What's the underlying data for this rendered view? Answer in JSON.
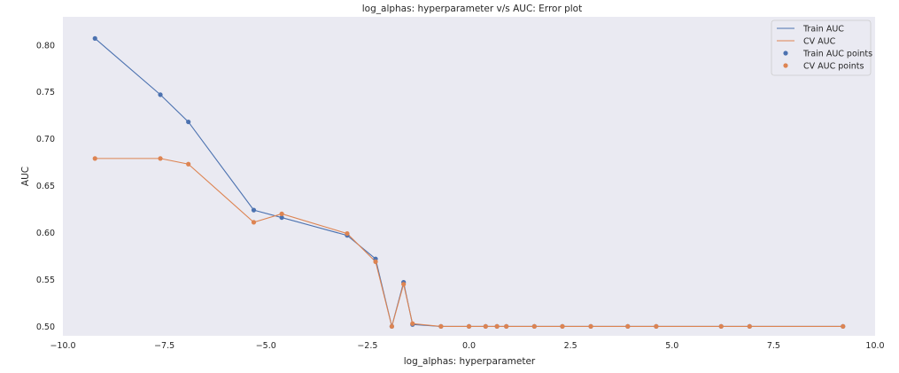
{
  "chart_data": {
    "type": "line",
    "title": "log_alphas: hyperparameter v/s AUC: Error plot",
    "xlabel": "log_alphas: hyperparameter",
    "ylabel": "AUC",
    "xlim": [
      -10.0,
      10.0
    ],
    "ylim": [
      0.49,
      0.83
    ],
    "xticks": [
      -10.0,
      -7.5,
      -5.0,
      -2.5,
      0.0,
      2.5,
      5.0,
      7.5,
      10.0
    ],
    "xtick_labels": [
      "−10.0",
      "−7.5",
      "−5.0",
      "−2.5",
      "0.0",
      "2.5",
      "5.0",
      "7.5",
      "10.0"
    ],
    "yticks": [
      0.5,
      0.55,
      0.6,
      0.65,
      0.7,
      0.75,
      0.8
    ],
    "ytick_labels": [
      "0.50",
      "0.55",
      "0.60",
      "0.65",
      "0.70",
      "0.75",
      "0.80"
    ],
    "grid": false,
    "legend_position": "top-right",
    "x": [
      -9.21,
      -7.6,
      -6.91,
      -5.3,
      -4.61,
      -3.0,
      -2.3,
      -1.9,
      -1.61,
      -1.39,
      -0.69,
      0.0,
      0.41,
      0.69,
      0.92,
      1.61,
      2.3,
      3.0,
      3.91,
      4.61,
      6.21,
      6.91,
      9.21
    ],
    "series": [
      {
        "name": "Train AUC",
        "points_name": "Train AUC points",
        "color": "#4c72b0",
        "values": [
          0.807,
          0.747,
          0.718,
          0.624,
          0.616,
          0.597,
          0.572,
          0.5,
          0.547,
          0.502,
          0.5,
          0.5,
          0.5,
          0.5,
          0.5,
          0.5,
          0.5,
          0.5,
          0.5,
          0.5,
          0.5,
          0.5,
          0.5
        ]
      },
      {
        "name": "CV AUC",
        "points_name": "CV AUC points",
        "color": "#dd8452",
        "values": [
          0.679,
          0.679,
          0.673,
          0.611,
          0.62,
          0.599,
          0.569,
          0.5,
          0.545,
          0.503,
          0.5,
          0.5,
          0.5,
          0.5,
          0.5,
          0.5,
          0.5,
          0.5,
          0.5,
          0.5,
          0.5,
          0.5,
          0.5
        ]
      }
    ]
  },
  "colors": {
    "plot_background": "#eaeaf2",
    "legend_background": "#eaeaf2",
    "legend_border": "#cccccc"
  }
}
